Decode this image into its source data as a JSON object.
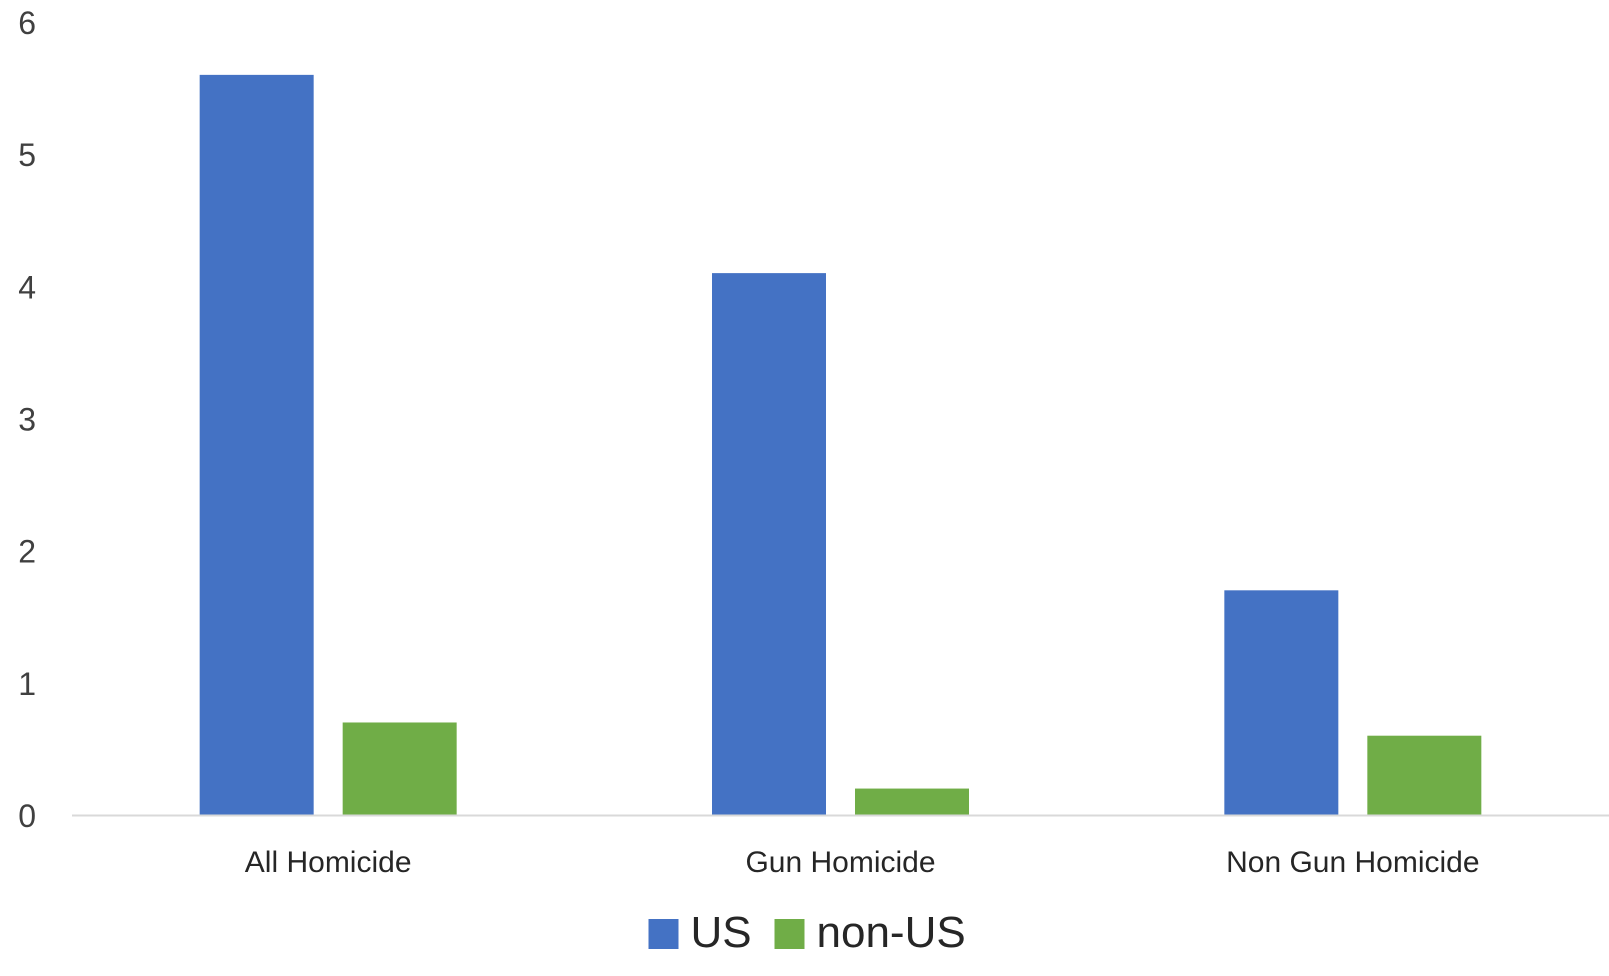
{
  "chart_data": {
    "type": "bar",
    "title": "",
    "xlabel": "",
    "ylabel": "",
    "categories": [
      "All Homicide",
      "Gun Homicide",
      "Non Gun Homicide"
    ],
    "series": [
      {
        "name": "US",
        "values": [
          5.6,
          4.1,
          1.7
        ],
        "color": "#4472c4"
      },
      {
        "name": "non-US",
        "values": [
          0.7,
          0.2,
          0.6
        ],
        "color": "#70ad47"
      }
    ],
    "ylim": [
      0,
      6
    ],
    "yticks": [
      "0",
      "1",
      "2",
      "3",
      "4",
      "5",
      "6"
    ],
    "grid": false,
    "legend": "bottom-center",
    "axis_color": "#d9d9d9"
  }
}
